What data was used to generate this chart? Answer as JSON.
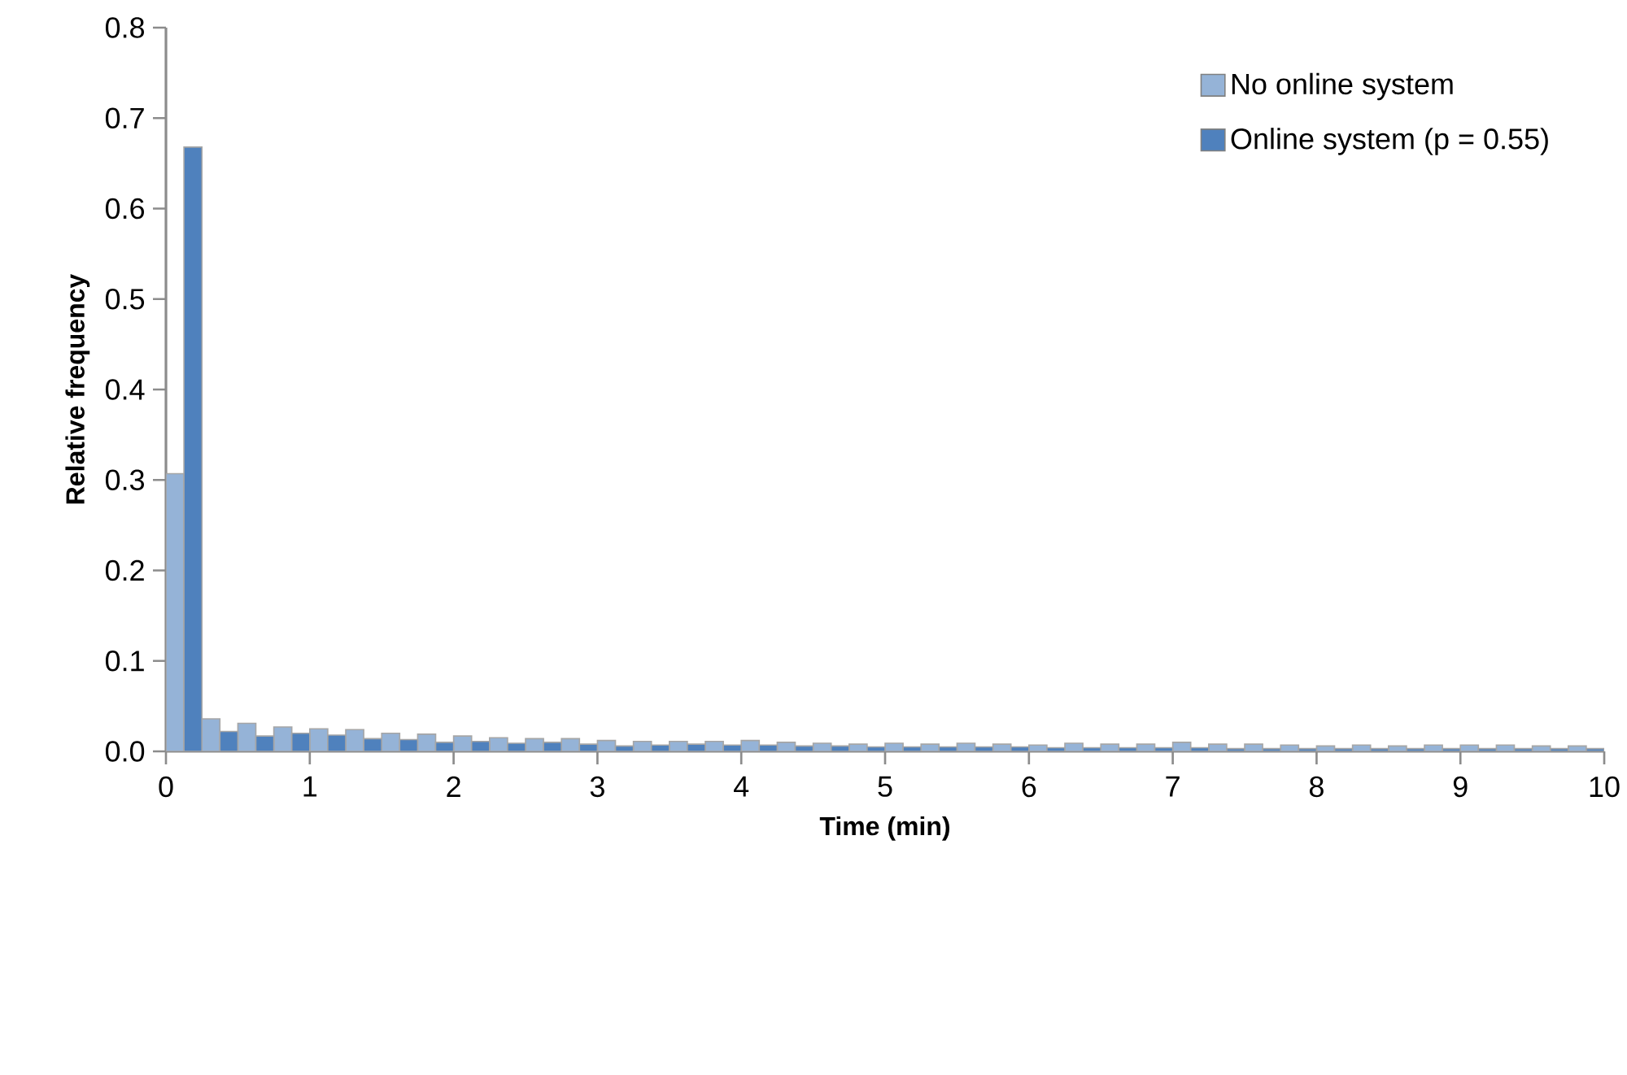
{
  "chart_data": {
    "type": "bar",
    "xlabel": "Time (min)",
    "ylabel": "Relative frequency",
    "x": [
      0.125,
      0.375,
      0.625,
      0.875,
      1.125,
      1.375,
      1.625,
      1.875,
      2.125,
      2.375,
      2.625,
      2.875,
      3.125,
      3.375,
      3.625,
      3.875,
      4.125,
      4.375,
      4.625,
      4.875,
      5.125,
      5.375,
      5.625,
      5.875,
      6.125,
      6.375,
      6.625,
      6.875,
      7.125,
      7.375,
      7.625,
      7.875,
      8.125,
      8.375,
      8.625,
      8.875,
      9.125,
      9.375,
      9.625,
      9.875
    ],
    "series": [
      {
        "name": "No online system",
        "color": "#95b3d7",
        "values": [
          0.307,
          0.036,
          0.031,
          0.027,
          0.025,
          0.024,
          0.02,
          0.019,
          0.017,
          0.015,
          0.014,
          0.014,
          0.012,
          0.011,
          0.011,
          0.011,
          0.012,
          0.01,
          0.009,
          0.008,
          0.009,
          0.008,
          0.009,
          0.008,
          0.007,
          0.009,
          0.008,
          0.008,
          0.01,
          0.008,
          0.008,
          0.007,
          0.006,
          0.007,
          0.006,
          0.007,
          0.007,
          0.007,
          0.006,
          0.006
        ]
      },
      {
        "name": "Online system (p = 0.55)",
        "color": "#4f81bd",
        "values": [
          0.668,
          0.022,
          0.017,
          0.02,
          0.018,
          0.014,
          0.013,
          0.01,
          0.011,
          0.009,
          0.01,
          0.008,
          0.006,
          0.007,
          0.008,
          0.007,
          0.007,
          0.006,
          0.006,
          0.005,
          0.005,
          0.005,
          0.005,
          0.005,
          0.004,
          0.004,
          0.004,
          0.004,
          0.004,
          0.003,
          0.003,
          0.003,
          0.003,
          0.003,
          0.003,
          0.003,
          0.003,
          0.003,
          0.003,
          0.003
        ]
      }
    ],
    "xlim": [
      0,
      10
    ],
    "xticks": [
      0,
      1,
      2,
      3,
      4,
      5,
      6,
      7,
      8,
      9,
      10
    ],
    "ylim": [
      0,
      0.8
    ],
    "yticks": [
      {
        "value": 0,
        "label": "0.0"
      },
      {
        "value": 0.1,
        "label": "0.1"
      },
      {
        "value": 0.2,
        "label": "0.2"
      },
      {
        "value": 0.3,
        "label": "0.3"
      },
      {
        "value": 0.4,
        "label": "0.4"
      },
      {
        "value": 0.5,
        "label": "0.5"
      },
      {
        "value": 0.6,
        "label": "0.6"
      },
      {
        "value": 0.7,
        "label": "0.7"
      },
      {
        "value": 0.8,
        "label": "0.8"
      }
    ],
    "grid": false,
    "legend": "top right"
  }
}
